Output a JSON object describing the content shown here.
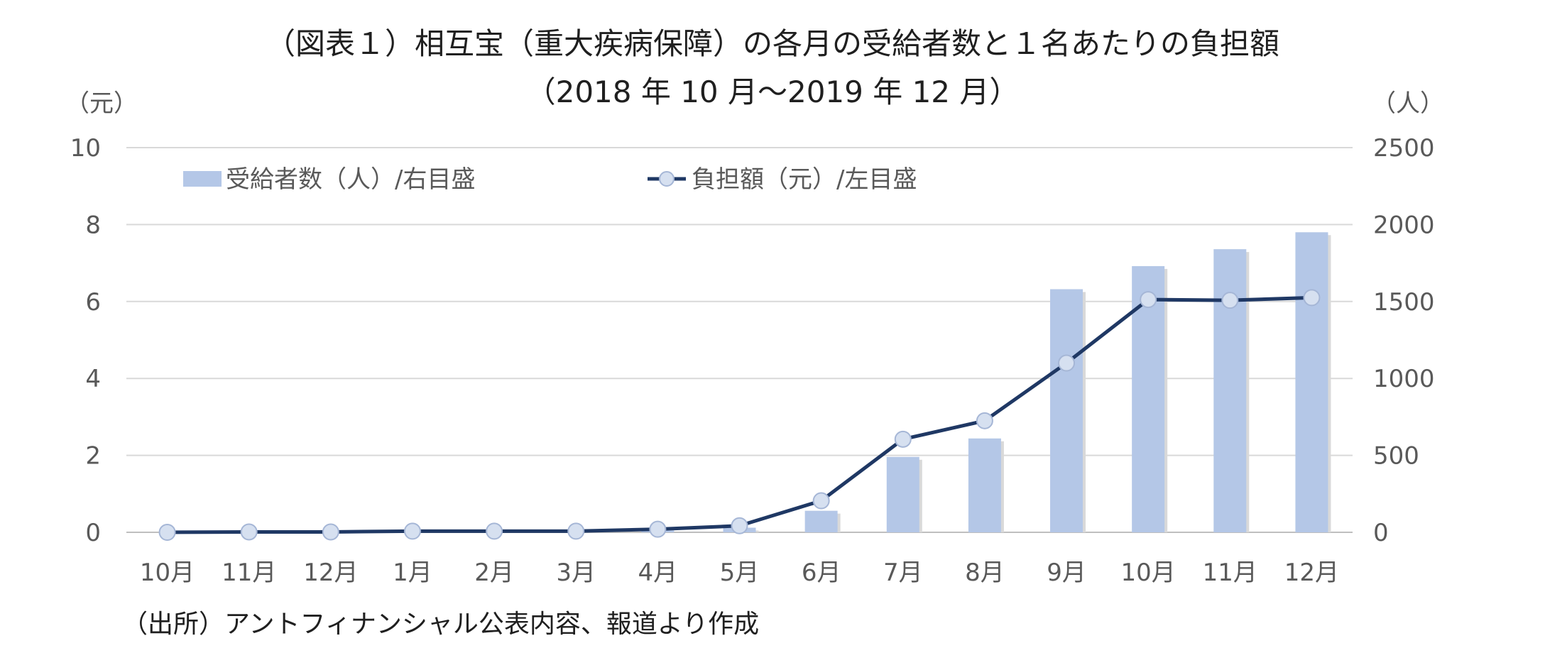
{
  "title": "（図表１）相互宝（重大疾病保障）の各月の受給者数と１名あたりの負担額",
  "subtitle": "（2018 年 10 月〜2019 年 12 月）",
  "source": "（出所）アントフィナンシャル公表内容、報道より作成",
  "chart_data": {
    "type": "bar",
    "categories": [
      "10月",
      "11月",
      "12月",
      "1月",
      "2月",
      "3月",
      "4月",
      "5月",
      "6月",
      "7月",
      "8月",
      "9月",
      "10月",
      "11月",
      "12月"
    ],
    "series": [
      {
        "name": "受給者数（人）/右目盛",
        "type": "bar",
        "axis": "right",
        "values": [
          0,
          0,
          1,
          3,
          4,
          5,
          12,
          30,
          140,
          490,
          610,
          1580,
          1730,
          1840,
          1950
        ],
        "color": "#b4c7e7"
      },
      {
        "name": "負担額（元）/左目盛",
        "type": "line",
        "axis": "left",
        "values": [
          0,
          0.01,
          0.01,
          0.03,
          0.03,
          0.03,
          0.08,
          0.17,
          0.82,
          2.42,
          2.9,
          4.4,
          6.05,
          6.03,
          6.1
        ],
        "color": "#1f3864"
      }
    ],
    "y_left": {
      "unit": "（元）",
      "lim": [
        0,
        10
      ],
      "ticks": [
        "0",
        "2",
        "4",
        "6",
        "8",
        "10"
      ]
    },
    "y_right": {
      "unit": "（人）",
      "lim": [
        0,
        2500
      ],
      "ticks": [
        "0",
        "500",
        "1000",
        "1500",
        "2000",
        "2500"
      ]
    },
    "grid": true,
    "legend_position": "top-left"
  }
}
